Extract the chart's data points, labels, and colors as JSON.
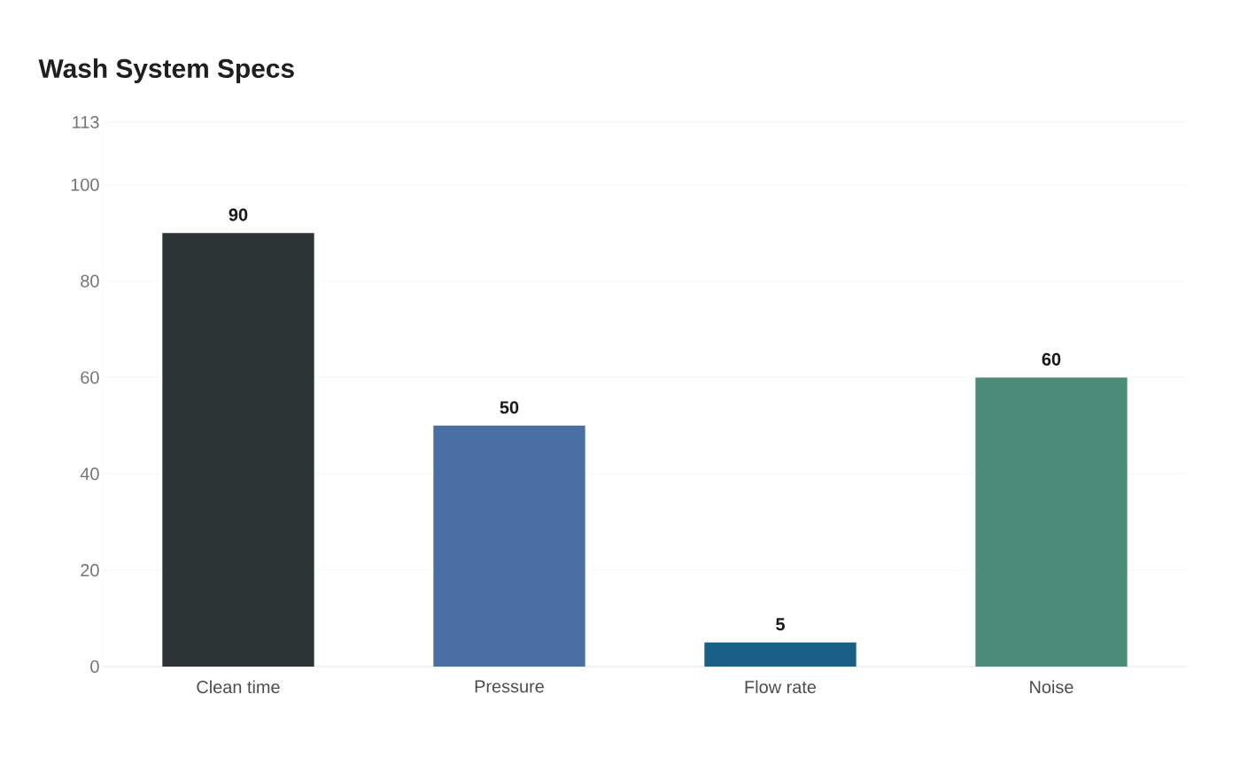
{
  "chart_data": {
    "type": "bar",
    "title": "Wash System Specs",
    "categories": [
      "Clean time",
      "Pressure",
      "Flow rate",
      "Noise"
    ],
    "values": [
      90,
      50,
      5,
      60
    ],
    "colors": [
      "#2d3436",
      "#4a6fa5",
      "#1a5f85",
      "#4e8c7a"
    ],
    "ylim": [
      0,
      113
    ],
    "yticks": [
      0,
      20,
      40,
      60,
      80,
      100,
      113
    ],
    "grid": "y",
    "data_labels": true
  }
}
